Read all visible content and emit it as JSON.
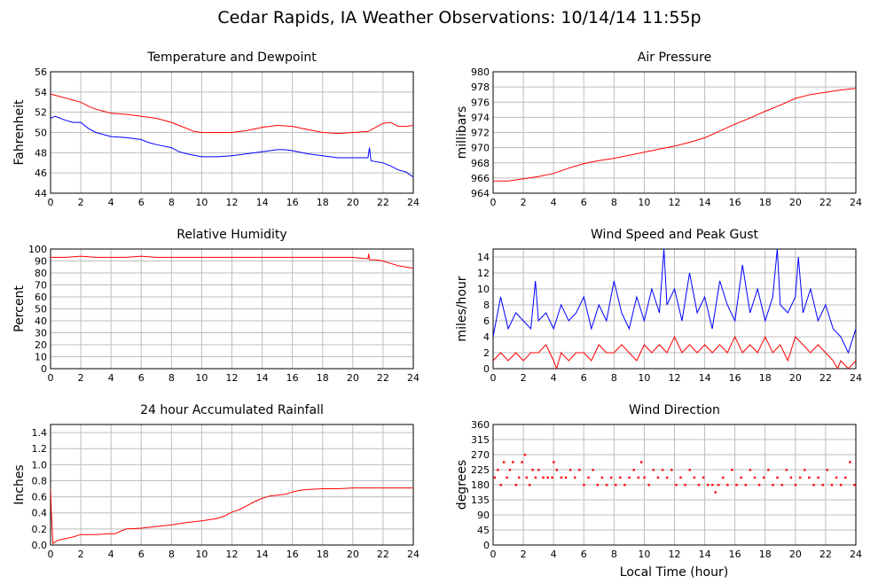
{
  "title": "Cedar Rapids, IA Weather Observations: 10/14/14 11:55p",
  "xlabel": "Local Time (hour)",
  "colors": {
    "red": "#ff0000",
    "blue": "#0000ff",
    "grid": "#bdbdbd"
  },
  "chart_data": [
    {
      "id": "temp",
      "type": "line",
      "title": "Temperature and Dewpoint",
      "ylabel": "Fahrenheit",
      "xlim": [
        0,
        24
      ],
      "ylim": [
        44,
        56
      ],
      "xticks": [
        0,
        2,
        4,
        6,
        8,
        10,
        12,
        14,
        16,
        18,
        20,
        22,
        24
      ],
      "yticks": [
        44,
        46,
        48,
        50,
        52,
        54,
        56
      ],
      "grid": true,
      "series": [
        {
          "color": "#ff0000",
          "x": [
            0,
            0.5,
            1,
            1.5,
            2,
            2.5,
            3,
            3.5,
            4,
            5,
            6,
            7,
            8,
            8.5,
            9,
            9.5,
            10,
            11,
            12,
            13,
            14,
            15,
            16,
            17,
            18,
            19,
            20,
            21,
            21.5,
            22,
            22.5,
            23,
            23.5,
            24
          ],
          "y": [
            53.8,
            53.6,
            53.4,
            53.2,
            53.0,
            52.6,
            52.3,
            52.1,
            51.9,
            51.8,
            51.6,
            51.4,
            51.0,
            50.7,
            50.4,
            50.1,
            50.0,
            50.0,
            50.0,
            50.2,
            50.5,
            50.7,
            50.6,
            50.3,
            50.0,
            49.9,
            50.0,
            50.1,
            50.5,
            50.9,
            51.0,
            50.6,
            50.6,
            50.7
          ]
        },
        {
          "color": "#0000ff",
          "x": [
            0,
            0.3,
            1,
            1.5,
            2,
            2.5,
            3,
            4,
            5,
            6,
            6.5,
            7,
            8,
            8.5,
            9,
            10,
            11,
            12,
            13,
            14,
            15,
            15.5,
            16,
            17,
            18,
            19,
            20,
            20.5,
            21,
            21.1,
            21.2,
            22,
            22.5,
            23,
            23.5,
            24
          ],
          "y": [
            51.4,
            51.6,
            51.2,
            51.0,
            51.0,
            50.4,
            50.0,
            49.6,
            49.5,
            49.3,
            49.0,
            48.8,
            48.5,
            48.1,
            47.9,
            47.6,
            47.6,
            47.7,
            47.9,
            48.1,
            48.3,
            48.3,
            48.2,
            47.9,
            47.7,
            47.5,
            47.5,
            47.5,
            47.5,
            48.5,
            47.2,
            47.0,
            46.7,
            46.3,
            46.1,
            45.6
          ]
        }
      ]
    },
    {
      "id": "pressure",
      "type": "line",
      "title": "Air Pressure",
      "ylabel": "millibars",
      "xlim": [
        0,
        24
      ],
      "ylim": [
        964,
        980
      ],
      "xticks": [
        0,
        2,
        4,
        6,
        8,
        10,
        12,
        14,
        16,
        18,
        20,
        22,
        24
      ],
      "yticks": [
        964,
        966,
        968,
        970,
        972,
        974,
        976,
        978,
        980
      ],
      "grid": true,
      "series": [
        {
          "color": "#ff0000",
          "x": [
            0,
            1,
            2,
            3,
            4,
            5,
            6,
            7,
            8,
            9,
            10,
            11,
            12,
            13,
            14,
            15,
            16,
            17,
            18,
            19,
            20,
            21,
            22,
            23,
            24
          ],
          "y": [
            965.6,
            965.6,
            965.9,
            966.2,
            966.6,
            967.3,
            967.9,
            968.3,
            968.6,
            969.0,
            969.4,
            969.8,
            970.2,
            970.7,
            971.3,
            972.2,
            973.1,
            973.9,
            974.8,
            975.6,
            976.5,
            977.0,
            977.3,
            977.6,
            977.8
          ]
        }
      ]
    },
    {
      "id": "humidity",
      "type": "line",
      "title": "Relative Humidity",
      "ylabel": "Percent",
      "xlim": [
        0,
        24
      ],
      "ylim": [
        0,
        100
      ],
      "xticks": [
        0,
        2,
        4,
        6,
        8,
        10,
        12,
        14,
        16,
        18,
        20,
        22,
        24
      ],
      "yticks": [
        0,
        10,
        20,
        30,
        40,
        50,
        60,
        70,
        80,
        90,
        100
      ],
      "grid": true,
      "series": [
        {
          "color": "#ff0000",
          "x": [
            0,
            1,
            2,
            3,
            4,
            5,
            6,
            7,
            8,
            10,
            12,
            14,
            16,
            18,
            20,
            20.8,
            21,
            21.05,
            21.1,
            21.5,
            22,
            22.5,
            23,
            23.5,
            24
          ],
          "y": [
            93,
            93,
            94,
            93,
            93,
            93,
            94,
            93,
            93,
            93,
            93,
            93,
            93,
            93,
            93,
            92,
            92,
            96,
            91,
            91,
            90,
            88,
            86,
            85,
            84
          ]
        }
      ]
    },
    {
      "id": "wind",
      "type": "line",
      "title": "Wind Speed and Peak Gust",
      "ylabel": "miles/hour",
      "xlim": [
        0,
        24
      ],
      "ylim": [
        0,
        15
      ],
      "xticks": [
        0,
        2,
        4,
        6,
        8,
        10,
        12,
        14,
        16,
        18,
        20,
        22,
        24
      ],
      "yticks": [
        0,
        2,
        4,
        6,
        8,
        10,
        12,
        14
      ],
      "grid": true,
      "series": [
        {
          "color": "#0000ff",
          "x": [
            0,
            0.5,
            1,
            1.5,
            2,
            2.5,
            2.8,
            3,
            3.5,
            4,
            4.5,
            5,
            5.5,
            6,
            6.5,
            7,
            7.5,
            8,
            8.5,
            9,
            9.5,
            10,
            10.5,
            11,
            11.3,
            11.5,
            12,
            12.5,
            13,
            13.5,
            14,
            14.5,
            15,
            15.5,
            16,
            16.5,
            17,
            17.5,
            18,
            18.5,
            18.8,
            19,
            19.5,
            20,
            20.2,
            20.5,
            21,
            21.5,
            22,
            22.5,
            23,
            23.5,
            24
          ],
          "y": [
            4,
            9,
            5,
            7,
            6,
            5,
            11,
            6,
            7,
            5,
            8,
            6,
            7,
            9,
            5,
            8,
            6,
            11,
            7,
            5,
            9,
            6,
            10,
            7,
            15,
            8,
            10,
            6,
            12,
            7,
            9,
            5,
            11,
            8,
            6,
            13,
            7,
            10,
            6,
            9,
            15,
            8,
            7,
            9,
            14,
            7,
            10,
            6,
            8,
            5,
            4,
            2,
            5
          ]
        },
        {
          "color": "#ff0000",
          "x": [
            0,
            0.5,
            1,
            1.5,
            2,
            2.5,
            3,
            3.5,
            4,
            4.2,
            4.5,
            5,
            5.5,
            6,
            6.5,
            7,
            7.5,
            8,
            8.5,
            9,
            9.5,
            10,
            10.5,
            11,
            11.5,
            12,
            12.5,
            13,
            13.5,
            14,
            14.5,
            15,
            15.5,
            16,
            16.5,
            17,
            17.5,
            18,
            18.5,
            19,
            19.5,
            20,
            20.5,
            21,
            21.5,
            22,
            22.5,
            22.8,
            23,
            23.5,
            24
          ],
          "y": [
            1,
            2,
            1,
            2,
            1,
            2,
            2,
            3,
            1,
            0,
            2,
            1,
            2,
            2,
            1,
            3,
            2,
            2,
            3,
            2,
            1,
            3,
            2,
            3,
            2,
            4,
            2,
            3,
            2,
            3,
            2,
            3,
            2,
            4,
            2,
            3,
            2,
            4,
            2,
            3,
            1,
            4,
            3,
            2,
            3,
            2,
            1,
            0,
            1,
            0,
            1
          ]
        }
      ]
    },
    {
      "id": "rain",
      "type": "line",
      "title": "24 hour Accumulated Rainfall",
      "ylabel": "Inches",
      "xlim": [
        0,
        24
      ],
      "ylim": [
        0,
        1.5
      ],
      "xticks": [
        0,
        2,
        4,
        6,
        8,
        10,
        12,
        14,
        16,
        18,
        20,
        22,
        24
      ],
      "yticks": [
        0.0,
        0.2,
        0.4,
        0.6,
        0.8,
        1.0,
        1.2,
        1.4
      ],
      "ytick_labels": [
        "0.0",
        "0.2",
        "0.4",
        "0.6",
        "0.8",
        "1.0",
        "1.2",
        "1.4"
      ],
      "grid": true,
      "series": [
        {
          "color": "#ff0000",
          "x": [
            0,
            0.05,
            0.15,
            0.5,
            1,
            1.5,
            2,
            3,
            4,
            4.3,
            4.6,
            5,
            6,
            7,
            8,
            9,
            10,
            11,
            11.5,
            12,
            12.5,
            13,
            13.5,
            14,
            14.5,
            15,
            15.5,
            16,
            16.5,
            17,
            18,
            19,
            20,
            21,
            22,
            23,
            24
          ],
          "y": [
            0.7,
            0.4,
            0.02,
            0.06,
            0.08,
            0.1,
            0.13,
            0.13,
            0.14,
            0.14,
            0.17,
            0.2,
            0.21,
            0.23,
            0.25,
            0.28,
            0.3,
            0.33,
            0.36,
            0.41,
            0.44,
            0.49,
            0.54,
            0.58,
            0.61,
            0.62,
            0.63,
            0.66,
            0.68,
            0.69,
            0.7,
            0.7,
            0.71,
            0.71,
            0.71,
            0.71,
            0.71
          ]
        }
      ]
    },
    {
      "id": "direction",
      "type": "scatter",
      "title": "Wind Direction",
      "ylabel": "degrees",
      "xlim": [
        0,
        24
      ],
      "ylim": [
        0,
        360
      ],
      "xticks": [
        0,
        2,
        4,
        6,
        8,
        10,
        12,
        14,
        16,
        18,
        20,
        22,
        24
      ],
      "yticks": [
        0,
        45,
        90,
        135,
        180,
        225,
        270,
        315,
        360
      ],
      "grid": true,
      "series": [
        {
          "color": "#ff0000",
          "x": [
            0.1,
            0.3,
            0.5,
            0.7,
            0.9,
            1.1,
            1.3,
            1.5,
            1.7,
            1.9,
            2.1,
            2.2,
            2.4,
            2.6,
            2.8,
            3.0,
            3.3,
            3.6,
            3.9,
            4.0,
            4.2,
            4.5,
            4.8,
            5.1,
            5.4,
            5.7,
            6.0,
            6.3,
            6.6,
            6.9,
            7.2,
            7.5,
            7.8,
            8.1,
            8.4,
            8.7,
            9.0,
            9.3,
            9.6,
            9.8,
            10.0,
            10.3,
            10.6,
            10.9,
            11.2,
            11.5,
            11.8,
            12.1,
            12.4,
            12.7,
            13.0,
            13.3,
            13.6,
            13.9,
            14.2,
            14.5,
            14.7,
            14.9,
            15.2,
            15.5,
            15.8,
            16.1,
            16.4,
            16.7,
            17.0,
            17.3,
            17.6,
            17.9,
            18.2,
            18.5,
            18.8,
            19.1,
            19.4,
            19.7,
            20.0,
            20.3,
            20.6,
            20.9,
            21.2,
            21.5,
            21.8,
            22.1,
            22.4,
            22.7,
            23.0,
            23.3,
            23.6,
            23.9
          ],
          "y": [
            202,
            225,
            180,
            248,
            202,
            225,
            248,
            180,
            202,
            248,
            270,
            202,
            180,
            225,
            202,
            225,
            202,
            202,
            202,
            248,
            225,
            202,
            202,
            225,
            202,
            225,
            180,
            202,
            225,
            180,
            202,
            180,
            202,
            180,
            202,
            180,
            202,
            225,
            202,
            248,
            202,
            180,
            225,
            202,
            225,
            202,
            225,
            180,
            202,
            180,
            225,
            202,
            180,
            202,
            180,
            180,
            158,
            180,
            202,
            180,
            225,
            180,
            202,
            180,
            225,
            202,
            180,
            202,
            225,
            180,
            202,
            180,
            225,
            202,
            180,
            202,
            225,
            202,
            180,
            202,
            180,
            225,
            180,
            202,
            180,
            202,
            248,
            180
          ]
        }
      ]
    }
  ]
}
